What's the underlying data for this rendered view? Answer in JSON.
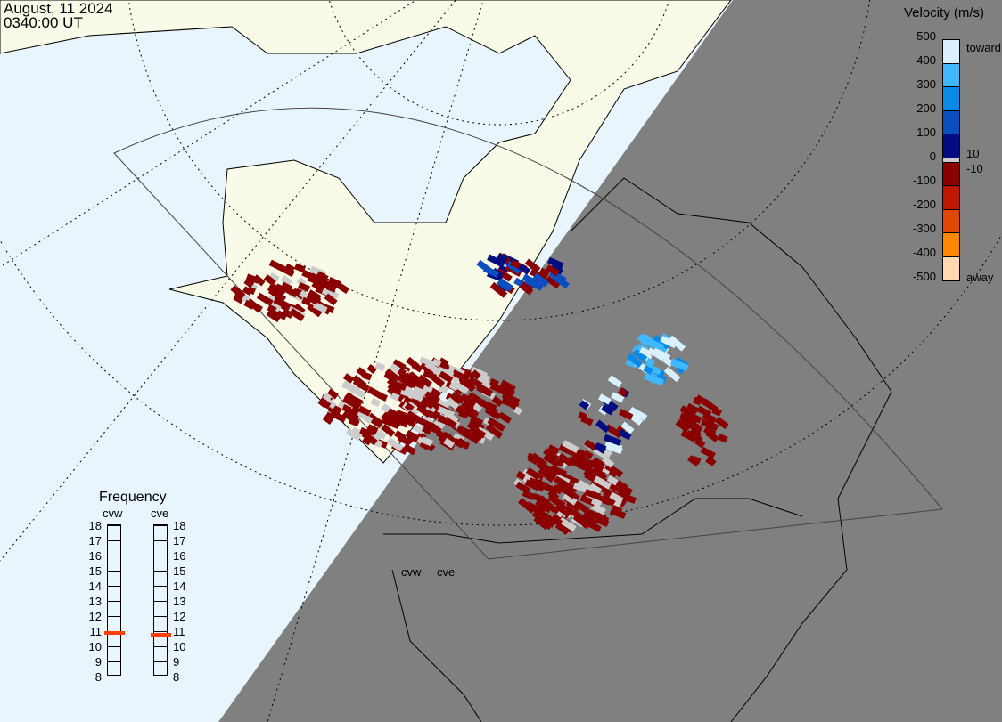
{
  "header": {
    "date": "August, 11 2024",
    "time": "0340:00 UT"
  },
  "velocity_legend": {
    "title": "Velocity (m/s)",
    "ticks": [
      "500",
      "400",
      "300",
      "200",
      "100",
      "0",
      "-100",
      "-200",
      "-300",
      "-400",
      "-500"
    ],
    "toward_label": "toward",
    "away_label": "away",
    "pos_threshold": "10",
    "neg_threshold": "-10",
    "colors": [
      "#d8f0ff",
      "#40b8ff",
      "#0a8ae8",
      "#0a4ec0",
      "#000c80",
      "#cccccc",
      "#8a0000",
      "#c01800",
      "#e04800",
      "#ff8800",
      "#ffd8b0"
    ]
  },
  "frequency": {
    "title": "Frequency",
    "radars": [
      {
        "name": "cvw",
        "value_mhz": 10.8
      },
      {
        "name": "cve",
        "value_mhz": 10.7
      }
    ],
    "ticks": [
      "18",
      "17",
      "16",
      "15",
      "14",
      "13",
      "12",
      "11",
      "10",
      "9",
      "8"
    ],
    "marker_color": "#ff4000"
  },
  "map": {
    "radar_labels": [
      "cvw",
      "cve"
    ],
    "day_color": "#e8f5fd",
    "land_color": "#fafae8",
    "night_color": "#808080"
  }
}
